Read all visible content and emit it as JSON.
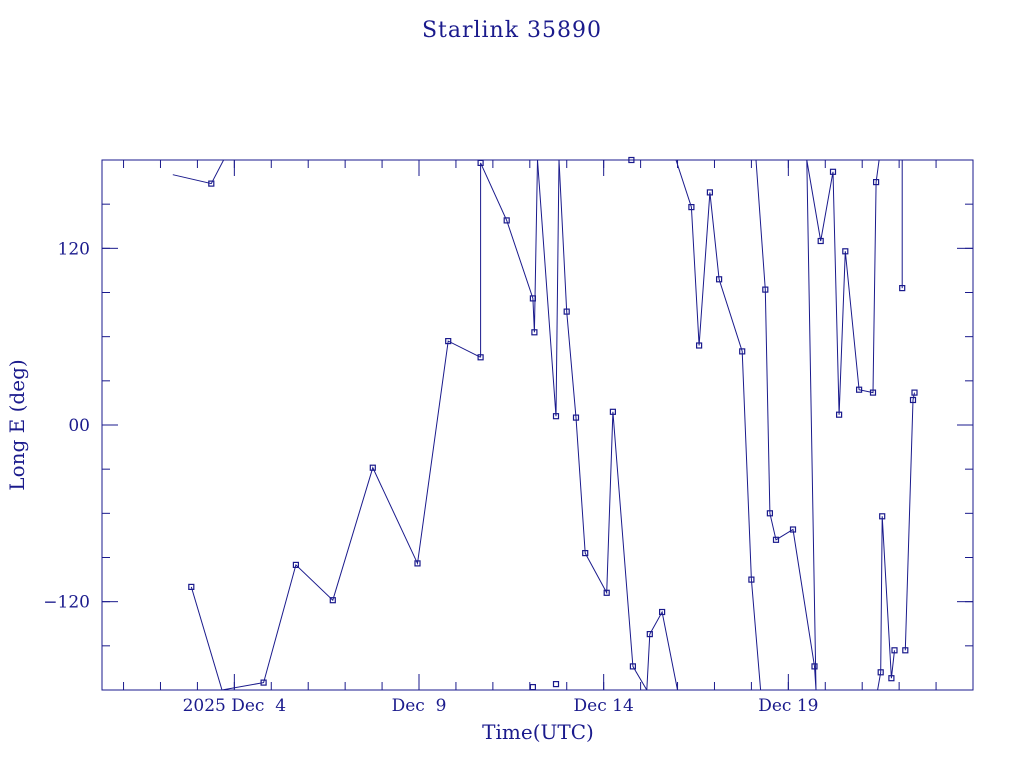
{
  "chart_data": {
    "type": "line",
    "title": "Starlink 35890",
    "xlabel": "Time(UTC)",
    "ylabel": "Long E (deg)",
    "xlim": [
      "2025-11-30T10:00",
      "2025-12-24T00:00"
    ],
    "ylim": [
      -180,
      180
    ],
    "xticks": [
      {
        "x": "2025-12-04T00:00",
        "label": "2025 Dec  4"
      },
      {
        "x": "2025-12-09T00:00",
        "label": "Dec  9"
      },
      {
        "x": "2025-12-14T00:00",
        "label": "Dec 14"
      },
      {
        "x": "2025-12-19T00:00",
        "label": "Dec 19"
      }
    ],
    "yticks": [
      {
        "y": 120,
        "label": "120"
      },
      {
        "y": 0,
        "label": "00"
      },
      {
        "y": -120,
        "label": "−120"
      }
    ],
    "grid": false,
    "color": "#1a1a8c",
    "points": [
      {
        "x": "2025-12-02T08:00",
        "y": 170
      },
      {
        "x": "2025-12-03T09:00",
        "y": 164
      },
      {
        "x": "2025-12-03T17:00",
        "y": 180
      },
      {
        "x": "2025-12-02T20:00",
        "y": -110
      },
      {
        "x": "2025-12-03T16:00",
        "y": -180
      },
      {
        "x": "2025-12-04T19:00",
        "y": -175
      },
      {
        "x": "2025-12-05T16:00",
        "y": -95
      },
      {
        "x": "2025-12-06T16:00",
        "y": -119
      },
      {
        "x": "2025-12-07T18:00",
        "y": -29
      },
      {
        "x": "2025-12-08T23:00",
        "y": -94
      },
      {
        "x": "2025-12-09T19:00",
        "y": 57
      },
      {
        "x": "2025-12-10T16:00",
        "y": 46
      },
      {
        "x": "2025-12-10T16:00",
        "y": 178
      },
      {
        "x": "2025-12-11T09:00",
        "y": 139
      },
      {
        "x": "2025-12-12T02:00",
        "y": 86
      },
      {
        "x": "2025-12-12T03:00",
        "y": 63
      },
      {
        "x": "2025-12-12T05:00",
        "y": 180
      },
      {
        "x": "2025-12-12T17:00",
        "y": 6
      },
      {
        "x": "2025-12-12T19:00",
        "y": 180
      },
      {
        "x": "2025-12-13T00:00",
        "y": 77
      },
      {
        "x": "2025-12-13T06:00",
        "y": 5
      },
      {
        "x": "2025-12-13T12:00",
        "y": -87
      },
      {
        "x": "2025-12-14T02:00",
        "y": -114
      },
      {
        "x": "2025-12-14T06:00",
        "y": 9
      },
      {
        "x": "2025-12-14T19:00",
        "y": -164
      },
      {
        "x": "2025-12-15T04:00",
        "y": -180
      },
      {
        "x": "2025-12-15T06:00",
        "y": -142
      },
      {
        "x": "2025-12-15T14:00",
        "y": -127
      },
      {
        "x": "2025-12-16T00:00",
        "y": -180
      },
      {
        "x": "2025-12-15T23:00",
        "y": 180
      },
      {
        "x": "2025-12-16T09:00",
        "y": 148
      },
      {
        "x": "2025-12-16T14:00",
        "y": 54
      },
      {
        "x": "2025-12-16T21:00",
        "y": 158
      },
      {
        "x": "2025-12-17T03:00",
        "y": 99
      },
      {
        "x": "2025-12-17T18:00",
        "y": 50
      },
      {
        "x": "2025-12-18T00:00",
        "y": -105
      },
      {
        "x": "2025-12-18T06:00",
        "y": -180
      },
      {
        "x": "2025-12-18T03:00",
        "y": 180
      },
      {
        "x": "2025-12-18T09:00",
        "y": 92
      },
      {
        "x": "2025-12-18T12:00",
        "y": -60
      },
      {
        "x": "2025-12-18T16:00",
        "y": -78
      },
      {
        "x": "2025-12-19T03:00",
        "y": -71
      },
      {
        "x": "2025-12-19T17:00",
        "y": -164
      },
      {
        "x": "2025-12-19T18:00",
        "y": -180
      },
      {
        "x": "2025-12-19T12:00",
        "y": 180
      },
      {
        "x": "2025-12-19T21:00",
        "y": 125
      },
      {
        "x": "2025-12-20T05:00",
        "y": 172
      },
      {
        "x": "2025-12-20T09:00",
        "y": 7
      },
      {
        "x": "2025-12-20T13:00",
        "y": 118
      },
      {
        "x": "2025-12-20T22:00",
        "y": 24
      },
      {
        "x": "2025-12-21T07:00",
        "y": 22
      },
      {
        "x": "2025-12-21T09:00",
        "y": 165
      },
      {
        "x": "2025-12-21T11:00",
        "y": 180
      },
      {
        "x": "2025-12-21T10:00",
        "y": -180
      },
      {
        "x": "2025-12-21T12:00",
        "y": -168
      },
      {
        "x": "2025-12-21T13:00",
        "y": -62
      },
      {
        "x": "2025-12-21T19:00",
        "y": -172
      },
      {
        "x": "2025-12-21T21:00",
        "y": -153
      },
      {
        "x": "2025-12-22T02:00",
        "y": 180
      },
      {
        "x": "2025-12-22T02:00",
        "y": 93
      },
      {
        "x": "2025-12-22T04:00",
        "y": -153
      },
      {
        "x": "2025-12-22T09:00",
        "y": 17
      },
      {
        "x": "2025-12-22T10:00",
        "y": 22
      },
      {
        "x": "2025-12-12T02:00",
        "y": -178
      },
      {
        "x": "2025-12-12T17:00",
        "y": -176
      },
      {
        "x": "2025-12-14T18:00",
        "y": 180
      }
    ],
    "segments": [
      [
        0,
        1,
        2
      ],
      [
        3,
        4
      ],
      [
        4,
        5,
        6,
        7,
        8,
        9,
        10,
        11
      ],
      [
        11,
        12
      ],
      [
        12,
        13,
        14,
        15,
        16
      ],
      [
        16,
        17,
        18
      ],
      [
        18,
        19,
        20,
        21,
        22,
        23,
        24,
        25
      ],
      [
        25,
        26,
        27,
        28
      ],
      [
        29,
        30,
        31,
        32,
        33,
        34,
        35,
        36
      ],
      [
        37,
        38,
        39,
        40,
        41,
        42,
        43,
        44,
        45,
        46,
        47,
        48,
        49,
        50,
        51,
        52
      ],
      [
        53,
        54,
        55,
        56,
        57
      ],
      [
        58,
        59
      ],
      [
        60,
        61,
        62
      ]
    ],
    "marker_indices": [
      1,
      3,
      5,
      6,
      7,
      8,
      9,
      10,
      11,
      12,
      13,
      14,
      15,
      17,
      19,
      20,
      21,
      22,
      23,
      24,
      26,
      27,
      30,
      31,
      32,
      33,
      34,
      35,
      38,
      39,
      40,
      41,
      42,
      45,
      46,
      47,
      48,
      49,
      50,
      51,
      54,
      55,
      56,
      57,
      59,
      60,
      61,
      62,
      63,
      64,
      65
    ]
  }
}
